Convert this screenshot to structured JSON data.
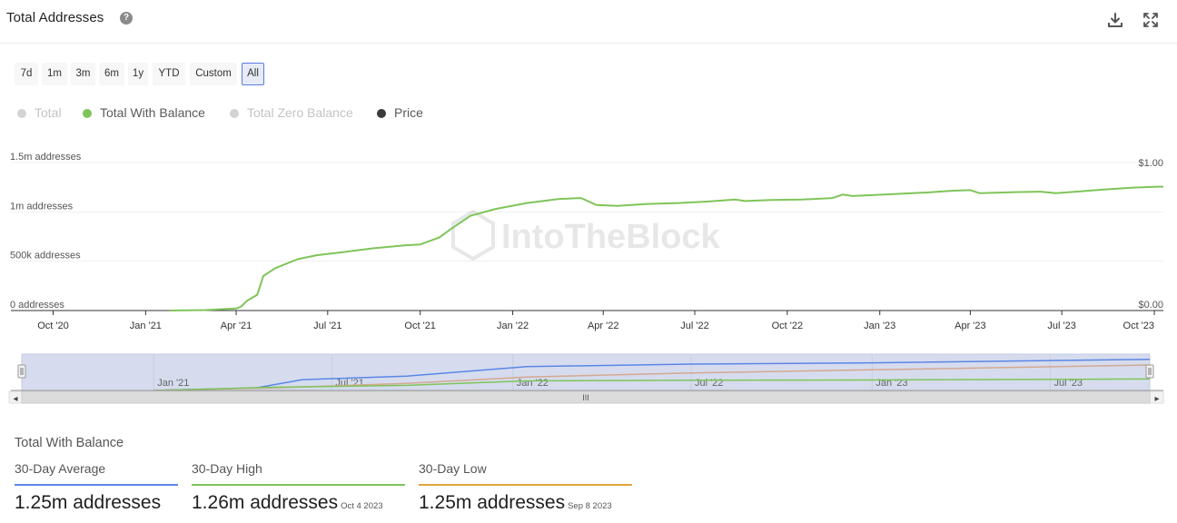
{
  "header": {
    "title": "Total Addresses",
    "help_glyph": "?",
    "icons": [
      "download-icon",
      "expand-icon"
    ]
  },
  "range_buttons": [
    {
      "label": "7d",
      "active": false
    },
    {
      "label": "1m",
      "active": false
    },
    {
      "label": "3m",
      "active": false
    },
    {
      "label": "6m",
      "active": false
    },
    {
      "label": "1y",
      "active": false
    },
    {
      "label": "YTD",
      "active": false
    },
    {
      "label": "Custom",
      "active": false
    },
    {
      "label": "All",
      "active": true
    }
  ],
  "legend": [
    {
      "label": "Total",
      "color": "#d3d3d3",
      "enabled": false
    },
    {
      "label": "Total With Balance",
      "color": "#7fc45a",
      "enabled": true
    },
    {
      "label": "Total Zero Balance",
      "color": "#d3d3d3",
      "enabled": false
    },
    {
      "label": "Price",
      "color": "#3a3a3a",
      "enabled": true
    }
  ],
  "colors": {
    "series": "#7fc45a",
    "nav_total": "#5b86e5",
    "nav_price": "#d4a890",
    "nav_balance": "#7fc45a",
    "average_line": "#5b86e5",
    "high_line": "#7fc45a",
    "low_line": "#e0a43b"
  },
  "watermark": "IntoTheBlock",
  "chart_data": {
    "type": "line",
    "title": "Total Addresses",
    "series_name": "Total With Balance",
    "y_axis_left": {
      "range": [
        0,
        1500000
      ],
      "ticks": [
        0,
        500000,
        1000000,
        1500000
      ],
      "tick_labels": [
        "0 addresses",
        "500k addresses",
        "1m addresses",
        "1.5m addresses"
      ]
    },
    "y_axis_right": {
      "range": [
        0,
        1
      ],
      "tick_labels": [
        "$0.00",
        "$1.00"
      ]
    },
    "x_axis": {
      "start": "2020-08-20",
      "end": "2023-10-10",
      "ticks": [
        {
          "date": "2020-10-01",
          "label": "Oct '20"
        },
        {
          "date": "2021-01-01",
          "label": "Jan '21"
        },
        {
          "date": "2021-04-01",
          "label": "Apr '21"
        },
        {
          "date": "2021-07-01",
          "label": "Jul '21"
        },
        {
          "date": "2021-10-01",
          "label": "Oct '21"
        },
        {
          "date": "2022-01-01",
          "label": "Jan '22"
        },
        {
          "date": "2022-04-01",
          "label": "Apr '22"
        },
        {
          "date": "2022-07-01",
          "label": "Jul '22"
        },
        {
          "date": "2022-10-01",
          "label": "Oct '22"
        },
        {
          "date": "2023-01-01",
          "label": "Jan '23"
        },
        {
          "date": "2023-04-01",
          "label": "Apr '23"
        },
        {
          "date": "2023-07-01",
          "label": "Jul '23"
        },
        {
          "date": "2023-10-01",
          "label": "Oct '23"
        }
      ]
    },
    "points": [
      [
        "2021-01-25",
        0
      ],
      [
        "2021-03-01",
        5000
      ],
      [
        "2021-04-01",
        20000
      ],
      [
        "2021-04-06",
        40000
      ],
      [
        "2021-04-12",
        100000
      ],
      [
        "2021-04-22",
        160000
      ],
      [
        "2021-04-28",
        350000
      ],
      [
        "2021-05-10",
        430000
      ],
      [
        "2021-06-01",
        520000
      ],
      [
        "2021-06-20",
        560000
      ],
      [
        "2021-07-15",
        590000
      ],
      [
        "2021-08-15",
        630000
      ],
      [
        "2021-09-15",
        660000
      ],
      [
        "2021-10-01",
        670000
      ],
      [
        "2021-10-20",
        740000
      ],
      [
        "2021-11-01",
        830000
      ],
      [
        "2021-11-20",
        960000
      ],
      [
        "2021-12-15",
        1030000
      ],
      [
        "2022-01-15",
        1090000
      ],
      [
        "2022-02-15",
        1130000
      ],
      [
        "2022-03-10",
        1140000
      ],
      [
        "2022-03-25",
        1070000
      ],
      [
        "2022-04-15",
        1060000
      ],
      [
        "2022-05-15",
        1080000
      ],
      [
        "2022-06-15",
        1090000
      ],
      [
        "2022-07-15",
        1105000
      ],
      [
        "2022-08-10",
        1125000
      ],
      [
        "2022-08-20",
        1110000
      ],
      [
        "2022-09-15",
        1120000
      ],
      [
        "2022-10-15",
        1125000
      ],
      [
        "2022-11-15",
        1140000
      ],
      [
        "2022-11-25",
        1175000
      ],
      [
        "2022-12-05",
        1160000
      ],
      [
        "2023-01-15",
        1180000
      ],
      [
        "2023-02-15",
        1195000
      ],
      [
        "2023-03-15",
        1215000
      ],
      [
        "2023-04-01",
        1220000
      ],
      [
        "2023-04-10",
        1190000
      ],
      [
        "2023-05-15",
        1200000
      ],
      [
        "2023-06-10",
        1205000
      ],
      [
        "2023-06-25",
        1190000
      ],
      [
        "2023-07-15",
        1205000
      ],
      [
        "2023-08-10",
        1225000
      ],
      [
        "2023-09-08",
        1245000
      ],
      [
        "2023-10-04",
        1255000
      ],
      [
        "2023-10-10",
        1255000
      ]
    ],
    "navigator": {
      "labels": [
        "Jan '21",
        "Jul '21",
        "Jan '22",
        "Jul '22",
        "Jan '23",
        "Jul '23"
      ],
      "label_dates": [
        "2021-01-01",
        "2021-07-01",
        "2022-01-01",
        "2022-07-01",
        "2023-01-01",
        "2023-07-01"
      ],
      "scrollbar_glyph": "III",
      "left_arrow": "◂",
      "right_arrow": "▸",
      "handle_glyph": "|||",
      "series": [
        {
          "name": "Total",
          "points": [
            [
              "2021-01-01",
              0
            ],
            [
              "2021-04-15",
              0.08
            ],
            [
              "2021-06-01",
              0.34
            ],
            [
              "2021-09-15",
              0.45
            ],
            [
              "2021-11-15",
              0.6
            ],
            [
              "2022-01-15",
              0.75
            ],
            [
              "2022-07-01",
              0.83
            ],
            [
              "2023-01-01",
              0.87
            ],
            [
              "2023-10-10",
              0.98
            ]
          ]
        },
        {
          "name": "Price",
          "points": [
            [
              "2021-01-01",
              0
            ],
            [
              "2021-05-01",
              0.08
            ],
            [
              "2021-09-15",
              0.22
            ],
            [
              "2022-01-15",
              0.42
            ],
            [
              "2022-07-01",
              0.55
            ],
            [
              "2023-01-01",
              0.65
            ],
            [
              "2023-10-10",
              0.8
            ]
          ]
        },
        {
          "name": "Total With Balance",
          "points": [
            [
              "2021-01-01",
              0
            ],
            [
              "2021-05-01",
              0.1
            ],
            [
              "2021-09-15",
              0.16
            ],
            [
              "2022-01-15",
              0.3
            ],
            [
              "2022-07-01",
              0.32
            ],
            [
              "2023-01-01",
              0.33
            ],
            [
              "2023-10-10",
              0.36
            ]
          ]
        }
      ]
    }
  },
  "stats": {
    "title": "Total With Balance",
    "items": [
      {
        "label": "30-Day Average",
        "value": "1.25m addresses",
        "date": ""
      },
      {
        "label": "30-Day High",
        "value": "1.26m addresses",
        "date": "Oct 4 2023"
      },
      {
        "label": "30-Day Low",
        "value": "1.25m addresses",
        "date": "Sep 8 2023"
      }
    ]
  }
}
